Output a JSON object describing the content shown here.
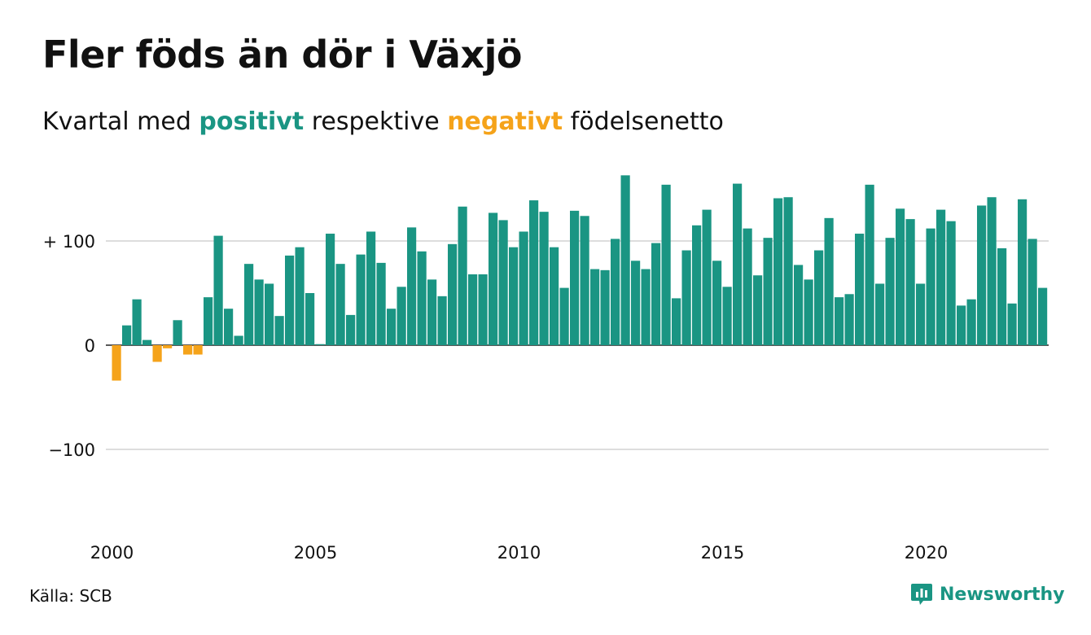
{
  "title": "Fler föds än dör i Växjö",
  "subtitle": {
    "prefix": "Kvartal med ",
    "positive_word": "positivt",
    "middle": " respektive ",
    "negative_word": "negativt",
    "suffix": " födelsenetto"
  },
  "source": "Källa: SCB",
  "brand": "Newsworthy",
  "colors": {
    "positive": "#1a9583",
    "negative": "#f5a31a",
    "grid": "#dddddd",
    "axis": "#222222"
  },
  "chart_data": {
    "type": "bar",
    "title": "Fler föds än dör i Växjö",
    "start_year": 2000,
    "periods_per_year": 4,
    "ylim": [
      -170,
      170
    ],
    "yticks": [
      {
        "value": 100,
        "label": "+ 100"
      },
      {
        "value": 0,
        "label": "0"
      },
      {
        "value": -100,
        "label": "−100"
      }
    ],
    "xticks": [
      "2000",
      "2005",
      "2010",
      "2015",
      "2020"
    ],
    "grid": true,
    "values": [
      -34,
      19,
      44,
      5,
      -16,
      -3,
      24,
      -9,
      -9,
      46,
      105,
      35,
      9,
      78,
      63,
      59,
      28,
      86,
      94,
      50,
      1,
      107,
      78,
      29,
      87,
      109,
      79,
      35,
      56,
      113,
      90,
      63,
      47,
      97,
      133,
      68,
      68,
      127,
      120,
      94,
      109,
      139,
      128,
      94,
      55,
      129,
      124,
      73,
      72,
      102,
      163,
      81,
      73,
      98,
      154,
      45,
      91,
      115,
      130,
      81,
      56,
      155,
      112,
      67,
      103,
      141,
      142,
      77,
      63,
      91,
      122,
      46,
      49,
      107,
      154,
      59,
      103,
      131,
      121,
      59,
      112,
      130,
      119,
      38,
      44,
      134,
      142,
      93,
      40,
      140,
      102,
      55
    ]
  }
}
